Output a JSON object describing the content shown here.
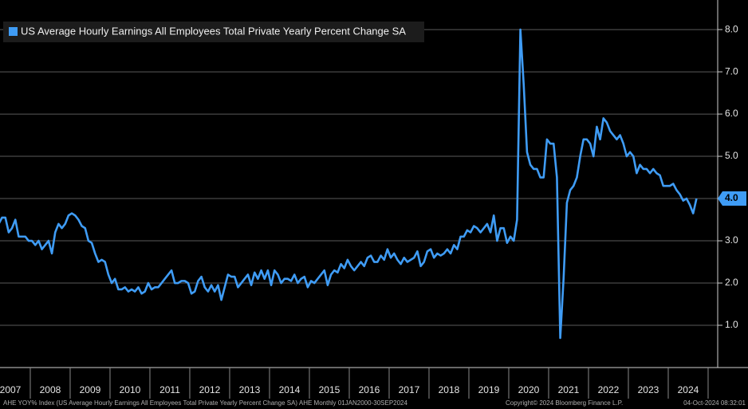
{
  "chart_data": {
    "type": "line",
    "categories": [
      null,
      null,
      null,
      null,
      "2007",
      null,
      null,
      null,
      null,
      null,
      null,
      null,
      null,
      null,
      null,
      null,
      "2008",
      null,
      null,
      null,
      null,
      null,
      null,
      null,
      null,
      null,
      null,
      null,
      "2009",
      null,
      null,
      null,
      null,
      null,
      null,
      null,
      null,
      null,
      null,
      null,
      "2010",
      null,
      null,
      null,
      null,
      null,
      null,
      null,
      null,
      null,
      null,
      null,
      "2011",
      null,
      null,
      null,
      null,
      null,
      null,
      null,
      null,
      null,
      null,
      null,
      "2012",
      null,
      null,
      null,
      null,
      null,
      null,
      null,
      null,
      null,
      null,
      null,
      "2013",
      null,
      null,
      null,
      null,
      null,
      null,
      null,
      null,
      null,
      null,
      null,
      "2014",
      null,
      null,
      null,
      null,
      null,
      null,
      null,
      null,
      null,
      null,
      null,
      "2015",
      null,
      null,
      null,
      null,
      null,
      null,
      null,
      null,
      null,
      null,
      null,
      "2016",
      null,
      null,
      null,
      null,
      null,
      null,
      null,
      null,
      null,
      null,
      null,
      "2017",
      null,
      null,
      null,
      null,
      null,
      null,
      null,
      null,
      null,
      null,
      null,
      "2018",
      null,
      null,
      null,
      null,
      null,
      null,
      null,
      null,
      null,
      null,
      null,
      "2019",
      null,
      null,
      null,
      null,
      null,
      null,
      null,
      null,
      null,
      null,
      null,
      "2020",
      null,
      null,
      null,
      null,
      null,
      null,
      null,
      null,
      null,
      null,
      null,
      "2021",
      null,
      null,
      null,
      null,
      null,
      null,
      null,
      null,
      null,
      null,
      null,
      "2022",
      null,
      null,
      null,
      null,
      null,
      null,
      null,
      null,
      null,
      null,
      null,
      "2023",
      null,
      null,
      null,
      null,
      null,
      null,
      null,
      null,
      null,
      null,
      null,
      "2024",
      null,
      null
    ],
    "series": [
      {
        "name": "US Average Hourly Earnings All Employees Total Private Yearly Percent Change SA",
        "color": "#3f9cf5",
        "values": [
          3.4,
          3.55,
          3.55,
          3.2,
          3.3,
          3.5,
          3.1,
          3.1,
          3.1,
          3.0,
          3.0,
          2.9,
          3.0,
          2.8,
          2.9,
          3.0,
          2.7,
          3.2,
          3.4,
          3.3,
          3.4,
          3.6,
          3.65,
          3.6,
          3.5,
          3.35,
          3.3,
          3.0,
          2.95,
          2.7,
          2.5,
          2.55,
          2.5,
          2.2,
          2.0,
          2.1,
          1.85,
          1.85,
          1.9,
          1.8,
          1.85,
          1.8,
          1.9,
          1.75,
          1.8,
          2.0,
          1.85,
          1.9,
          1.9,
          2.0,
          2.1,
          2.2,
          2.3,
          2.0,
          2.0,
          2.05,
          2.05,
          2.0,
          1.75,
          1.8,
          2.05,
          2.15,
          1.9,
          1.8,
          1.95,
          1.8,
          1.95,
          1.6,
          1.9,
          2.2,
          2.15,
          2.15,
          1.9,
          2.0,
          2.1,
          2.2,
          1.95,
          2.25,
          2.1,
          2.3,
          2.1,
          2.3,
          1.95,
          2.3,
          2.2,
          2.0,
          2.1,
          2.1,
          2.05,
          2.2,
          2.0,
          2.1,
          2.15,
          1.9,
          2.05,
          2.0,
          2.1,
          2.2,
          2.3,
          1.95,
          2.2,
          2.3,
          2.25,
          2.45,
          2.35,
          2.55,
          2.4,
          2.3,
          2.4,
          2.5,
          2.4,
          2.6,
          2.65,
          2.5,
          2.5,
          2.65,
          2.55,
          2.8,
          2.6,
          2.7,
          2.55,
          2.45,
          2.6,
          2.5,
          2.55,
          2.6,
          2.75,
          2.4,
          2.5,
          2.75,
          2.8,
          2.6,
          2.7,
          2.65,
          2.7,
          2.8,
          2.7,
          2.9,
          2.8,
          3.1,
          3.1,
          3.25,
          3.2,
          3.35,
          3.3,
          3.2,
          3.3,
          3.4,
          3.2,
          3.6,
          3.0,
          3.3,
          3.3,
          2.95,
          3.1,
          3.0,
          3.5,
          8.0,
          6.7,
          5.1,
          4.8,
          4.7,
          4.7,
          4.5,
          4.5,
          5.4,
          5.3,
          5.3,
          4.5,
          0.7,
          2.1,
          3.9,
          4.2,
          4.3,
          4.5,
          5.0,
          5.4,
          5.4,
          5.3,
          5.0,
          5.7,
          5.4,
          5.9,
          5.8,
          5.6,
          5.5,
          5.4,
          5.5,
          5.3,
          5.0,
          5.1,
          5.0,
          4.6,
          4.8,
          4.7,
          4.7,
          4.6,
          4.7,
          4.6,
          4.55,
          4.3,
          4.3,
          4.3,
          4.35,
          4.2,
          4.1,
          3.95,
          4.0,
          3.85,
          3.65,
          4.0
        ]
      }
    ],
    "ylim": [
      0,
      8.7
    ],
    "yticks": [
      {
        "value": 1,
        "label": "1.0"
      },
      {
        "value": 2,
        "label": "2.0"
      },
      {
        "value": 3,
        "label": "3.0"
      },
      {
        "value": 4,
        "label": "4.0"
      },
      {
        "value": 5,
        "label": "5.0"
      },
      {
        "value": 6,
        "label": "6.0"
      },
      {
        "value": 7,
        "label": "7.0"
      },
      {
        "value": 8,
        "label": "8.0"
      }
    ],
    "grid": true,
    "legend": "top-left",
    "last_value_tag": {
      "value": 4,
      "label": "4.0"
    },
    "footer": {
      "source": "AHE YOY% Index (US Average Hourly Earnings All Employees Total Private Yearly Percent Change SA) AHE  Monthly 01JAN2000-30SEP2024",
      "copyright": "Copyright© 2024 Bloomberg Finance L.P.",
      "timestamp": "04-Oct-2024 08:32:01"
    }
  }
}
